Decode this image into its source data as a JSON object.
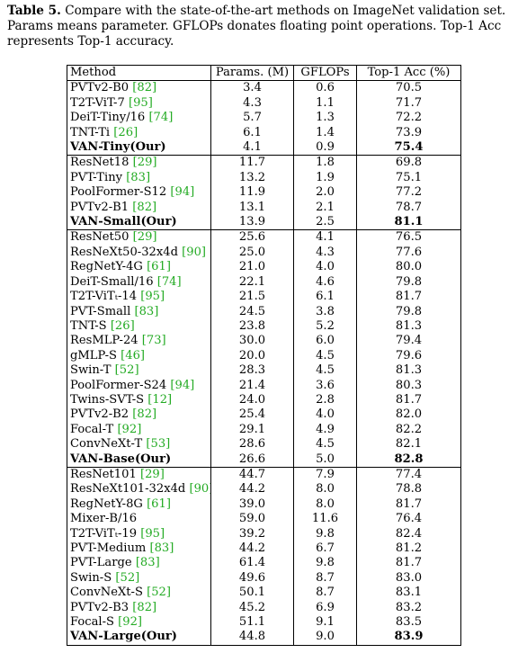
{
  "caption": {
    "label": "Table 5.",
    "text": " Compare with the state-of-the-art methods on ImageNet validation set. Params means parameter. GFLOPs donates floating point operations. Top-1 Acc represents Top-1 accuracy."
  },
  "table": {
    "headers": {
      "method": "Method",
      "params": "Params. (M)",
      "gflops": "GFLOPs",
      "top1": "Top-1 Acc (%)"
    },
    "groups": [
      [
        {
          "name": "PVTv2-B0",
          "cite": "[82]",
          "params": "3.4",
          "gflops": "0.6",
          "top1": "70.5"
        },
        {
          "name": "T2T-ViT-7",
          "cite": "[95]",
          "params": "4.3",
          "gflops": "1.1",
          "top1": "71.7"
        },
        {
          "name": "DeiT-Tiny/16",
          "cite": "[74]",
          "params": "5.7",
          "gflops": "1.3",
          "top1": "72.2"
        },
        {
          "name": "TNT-Ti",
          "cite": "[26]",
          "params": "6.1",
          "gflops": "1.4",
          "top1": "73.9"
        },
        {
          "name": "VAN-Tiny(Our)",
          "cite": "",
          "params": "4.1",
          "gflops": "0.9",
          "top1": "75.4",
          "ours": true
        }
      ],
      [
        {
          "name": "ResNet18",
          "cite": "[29]",
          "params": "11.7",
          "gflops": "1.8",
          "top1": "69.8"
        },
        {
          "name": "PVT-Tiny",
          "cite": "[83]",
          "params": "13.2",
          "gflops": "1.9",
          "top1": "75.1"
        },
        {
          "name": "PoolFormer-S12",
          "cite": "[94]",
          "params": "11.9",
          "gflops": "2.0",
          "top1": "77.2"
        },
        {
          "name": "PVTv2-B1",
          "cite": "[82]",
          "params": "13.1",
          "gflops": "2.1",
          "top1": "78.7"
        },
        {
          "name": "VAN-Small(Our)",
          "cite": "",
          "params": "13.9",
          "gflops": "2.5",
          "top1": "81.1",
          "ours": true
        }
      ],
      [
        {
          "name": "ResNet50",
          "cite": "[29]",
          "params": "25.6",
          "gflops": "4.1",
          "top1": "76.5"
        },
        {
          "name": "ResNeXt50-32x4d",
          "cite": "[90]",
          "params": "25.0",
          "gflops": "4.3",
          "top1": "77.6"
        },
        {
          "name": "RegNetY-4G",
          "cite": "[61]",
          "params": "21.0",
          "gflops": "4.0",
          "top1": "80.0"
        },
        {
          "name": "DeiT-Small/16",
          "cite": "[74]",
          "params": "22.1",
          "gflops": "4.6",
          "top1": "79.8"
        },
        {
          "name": "T2T-ViTₜ-14",
          "cite": "[95]",
          "params": "21.5",
          "gflops": "6.1",
          "top1": "81.7"
        },
        {
          "name": "PVT-Small",
          "cite": "[83]",
          "params": "24.5",
          "gflops": "3.8",
          "top1": "79.8"
        },
        {
          "name": "TNT-S",
          "cite": "[26]",
          "params": "23.8",
          "gflops": "5.2",
          "top1": "81.3"
        },
        {
          "name": "ResMLP-24",
          "cite": "[73]",
          "params": "30.0",
          "gflops": "6.0",
          "top1": "79.4"
        },
        {
          "name": "gMLP-S",
          "cite": "[46]",
          "params": "20.0",
          "gflops": "4.5",
          "top1": "79.6"
        },
        {
          "name": "Swin-T",
          "cite": "[52]",
          "params": "28.3",
          "gflops": "4.5",
          "top1": "81.3"
        },
        {
          "name": "PoolFormer-S24",
          "cite": "[94]",
          "params": "21.4",
          "gflops": "3.6",
          "top1": "80.3"
        },
        {
          "name": "Twins-SVT-S",
          "cite": "[12]",
          "params": "24.0",
          "gflops": "2.8",
          "top1": "81.7"
        },
        {
          "name": "PVTv2-B2",
          "cite": "[82]",
          "params": "25.4",
          "gflops": "4.0",
          "top1": "82.0"
        },
        {
          "name": "Focal-T",
          "cite": "[92]",
          "params": "29.1",
          "gflops": "4.9",
          "top1": "82.2"
        },
        {
          "name": "ConvNeXt-T",
          "cite": "[53]",
          "params": "28.6",
          "gflops": "4.5",
          "top1": "82.1"
        },
        {
          "name": "VAN-Base(Our)",
          "cite": "",
          "params": "26.6",
          "gflops": "5.0",
          "top1": "82.8",
          "ours": true
        }
      ],
      [
        {
          "name": "ResNet101",
          "cite": "[29]",
          "params": "44.7",
          "gflops": "7.9",
          "top1": "77.4"
        },
        {
          "name": "ResNeXt101-32x4d",
          "cite": "[90]",
          "params": "44.2",
          "gflops": "8.0",
          "top1": "78.8"
        },
        {
          "name": "RegNetY-8G",
          "cite": "[61]",
          "params": "39.0",
          "gflops": "8.0",
          "top1": "81.7"
        },
        {
          "name": "Mixer-B/16",
          "cite": "",
          "params": "59.0",
          "gflops": "11.6",
          "top1": "76.4"
        },
        {
          "name": "T2T-ViTₜ-19",
          "cite": "[95]",
          "params": "39.2",
          "gflops": "9.8",
          "top1": "82.4"
        },
        {
          "name": "PVT-Medium",
          "cite": "[83]",
          "params": "44.2",
          "gflops": "6.7",
          "top1": "81.2"
        },
        {
          "name": "PVT-Large",
          "cite": "[83]",
          "params": "61.4",
          "gflops": "9.8",
          "top1": "81.7"
        },
        {
          "name": "Swin-S",
          "cite": "[52]",
          "params": "49.6",
          "gflops": "8.7",
          "top1": "83.0"
        },
        {
          "name": "ConvNeXt-S",
          "cite": "[52]",
          "params": "50.1",
          "gflops": "8.7",
          "top1": "83.1"
        },
        {
          "name": "PVTv2-B3",
          "cite": "[82]",
          "params": "45.2",
          "gflops": "6.9",
          "top1": "83.2"
        },
        {
          "name": "Focal-S",
          "cite": "[92]",
          "params": "51.1",
          "gflops": "9.1",
          "top1": "83.5"
        },
        {
          "name": "VAN-Large(Our)",
          "cite": "",
          "params": "44.8",
          "gflops": "9.0",
          "top1": "83.9",
          "ours": true
        }
      ]
    ]
  }
}
